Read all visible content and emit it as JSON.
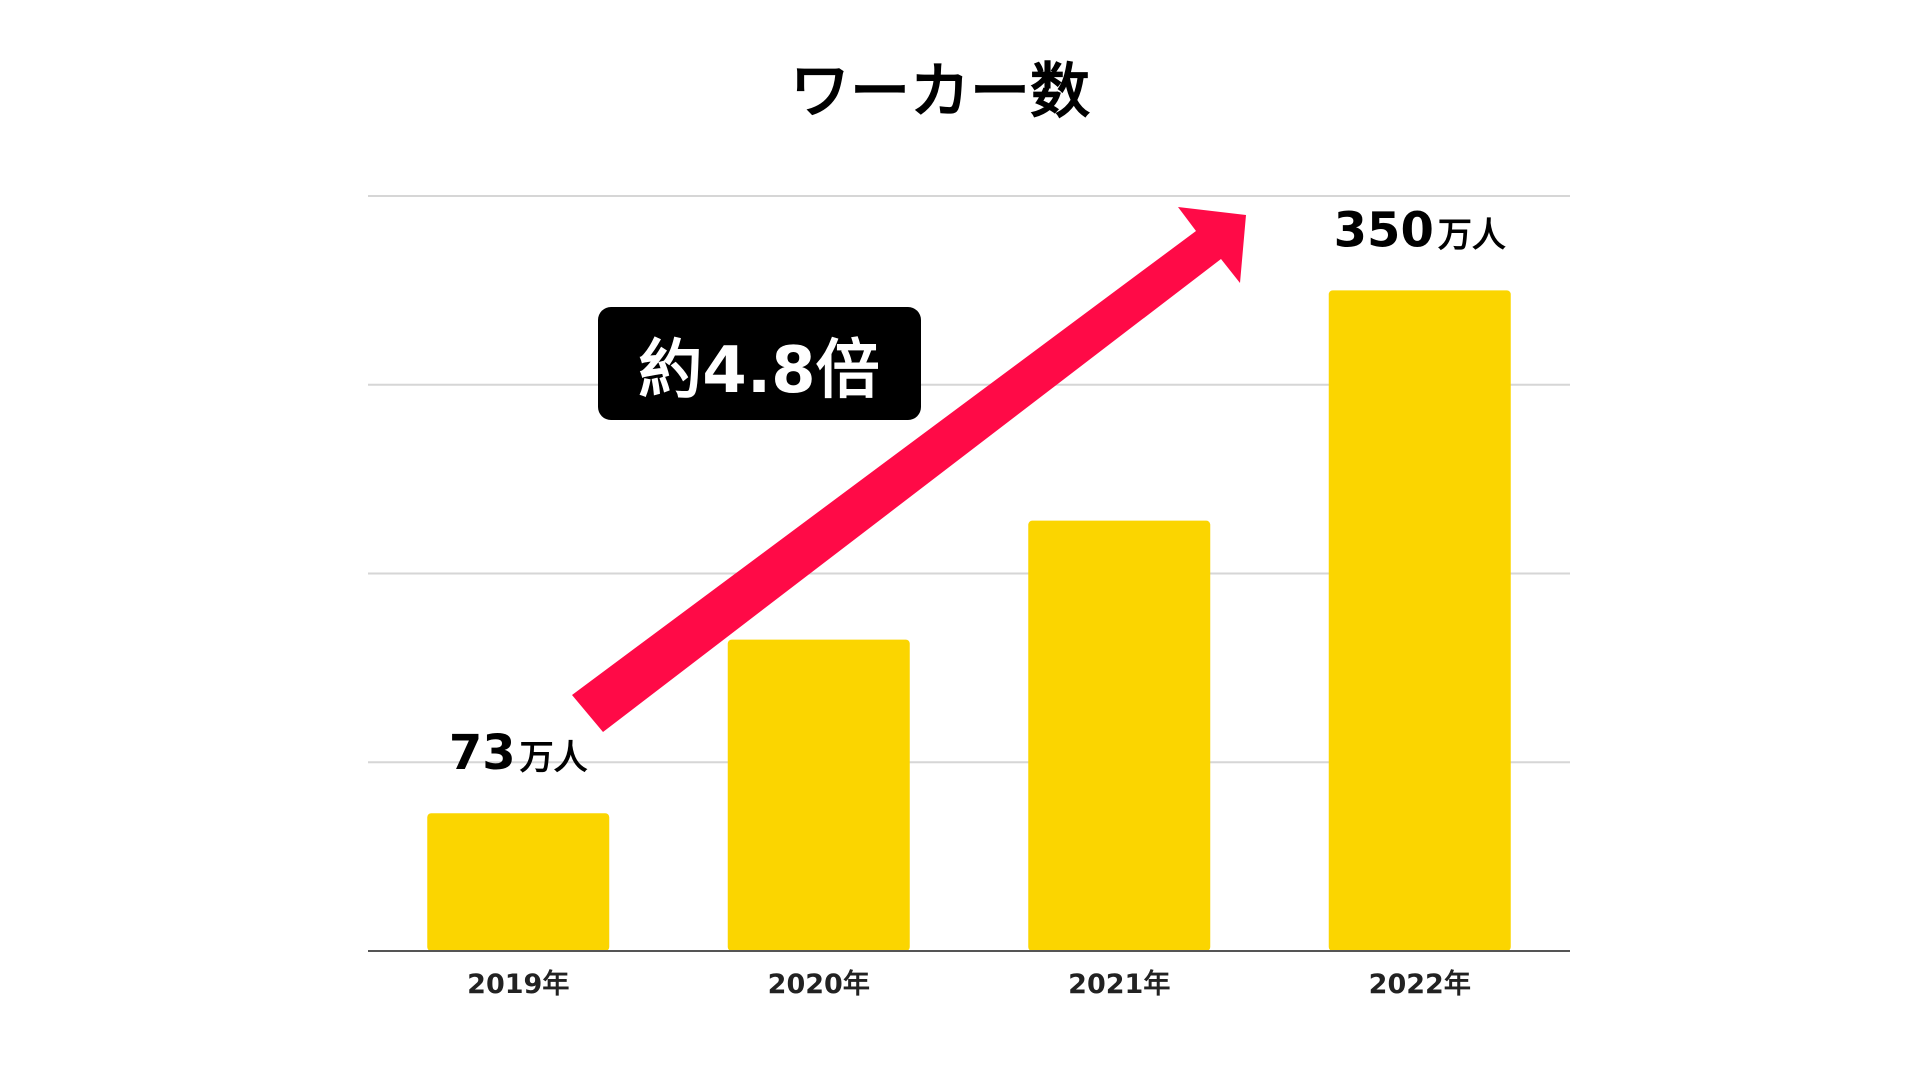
{
  "chart_data": {
    "type": "bar",
    "title": "ワーカー数",
    "categories": [
      "2019年",
      "2020年",
      "2021年",
      "2022年"
    ],
    "values": [
      73,
      165,
      228,
      350
    ],
    "ylim": [
      0,
      400
    ],
    "grid": true,
    "xlabel": "",
    "ylabel": "",
    "bar_color": "#FBD500",
    "data_labels": [
      {
        "index": 0,
        "number": "73",
        "unit": "万人"
      },
      {
        "index": 3,
        "number": "350",
        "unit": "万人"
      }
    ],
    "annotation": {
      "text": "約4.8倍",
      "arrow_color": "#FF0A47",
      "badge_color": "#000000",
      "from_category": 0,
      "to_category": 3
    }
  }
}
